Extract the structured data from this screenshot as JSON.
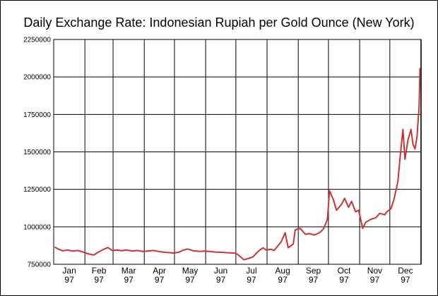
{
  "chart_data": {
    "type": "line",
    "title": "Daily Exchange Rate: Indonesian Rupiah per Gold Ounce (New York)",
    "xlabel": "",
    "ylabel": "",
    "ylim": [
      750000,
      2250000
    ],
    "y_ticks": [
      "750000",
      "1000000",
      "1250000",
      "1500000",
      "1750000",
      "2000000",
      "2250000"
    ],
    "x_ticks": [
      {
        "month": "Jan",
        "year": "97"
      },
      {
        "month": "Feb",
        "year": "97"
      },
      {
        "month": "Mar",
        "year": "97"
      },
      {
        "month": "Apr",
        "year": "97"
      },
      {
        "month": "May",
        "year": "97"
      },
      {
        "month": "Jun",
        "year": "97"
      },
      {
        "month": "Jul",
        "year": "97"
      },
      {
        "month": "Aug",
        "year": "97"
      },
      {
        "month": "Sep",
        "year": "97"
      },
      {
        "month": "Oct",
        "year": "97"
      },
      {
        "month": "Nov",
        "year": "97"
      },
      {
        "month": "Dec",
        "year": "97"
      }
    ],
    "grid": true,
    "line_color": "#cc3333",
    "series": [
      {
        "x": [
          "1997-01-02",
          "1997-01-06",
          "1997-01-10",
          "1997-01-15",
          "1997-01-20",
          "1997-01-25",
          "1997-01-31",
          "1997-02-05",
          "1997-02-10",
          "1997-02-14",
          "1997-02-19",
          "1997-02-24",
          "1997-02-28",
          "1997-03-05",
          "1997-03-10",
          "1997-03-14",
          "1997-03-20",
          "1997-03-25",
          "1997-03-31",
          "1997-04-04",
          "1997-04-10",
          "1997-04-15",
          "1997-04-21",
          "1997-04-25",
          "1997-04-30",
          "1997-05-05",
          "1997-05-09",
          "1997-05-14",
          "1997-05-20",
          "1997-05-26",
          "1997-05-30",
          "1997-06-05",
          "1997-06-10",
          "1997-06-16",
          "1997-06-20",
          "1997-06-25",
          "1997-06-30",
          "1997-07-03",
          "1997-07-09",
          "1997-07-14",
          "1997-07-18",
          "1997-07-23",
          "1997-07-28",
          "1997-07-31",
          "1997-08-05",
          "1997-08-08",
          "1997-08-12",
          "1997-08-15",
          "1997-08-19",
          "1997-08-22",
          "1997-08-27",
          "1997-08-29",
          "1997-09-03",
          "1997-09-08",
          "1997-09-12",
          "1997-09-17",
          "1997-09-22",
          "1997-09-26",
          "1997-09-30",
          "1997-10-02",
          "1997-10-06",
          "1997-10-09",
          "1997-10-14",
          "1997-10-17",
          "1997-10-21",
          "1997-10-24",
          "1997-10-28",
          "1997-10-31",
          "1997-11-04",
          "1997-11-07",
          "1997-11-12",
          "1997-11-17",
          "1997-11-21",
          "1997-11-26",
          "1997-11-28",
          "1997-12-02",
          "1997-12-05",
          "1997-12-09",
          "1997-12-11",
          "1997-12-14",
          "1997-12-16",
          "1997-12-19",
          "1997-12-22",
          "1997-12-24",
          "1997-12-26",
          "1997-12-28",
          "1997-12-30",
          "1997-12-31"
        ],
        "values": [
          865000,
          850000,
          840000,
          845000,
          838000,
          842000,
          830000,
          818000,
          812000,
          830000,
          848000,
          862000,
          842000,
          845000,
          840000,
          846000,
          838000,
          842000,
          835000,
          838000,
          842000,
          836000,
          830000,
          828000,
          825000,
          830000,
          842000,
          852000,
          840000,
          836000,
          838000,
          836000,
          832000,
          830000,
          828000,
          826000,
          825000,
          815000,
          780000,
          790000,
          800000,
          835000,
          860000,
          845000,
          850000,
          842000,
          875000,
          900000,
          960000,
          860000,
          885000,
          980000,
          990000,
          950000,
          955000,
          945000,
          960000,
          985000,
          1050000,
          1240000,
          1180000,
          1110000,
          1150000,
          1190000,
          1130000,
          1170000,
          1100000,
          1110000,
          990000,
          1030000,
          1050000,
          1060000,
          1090000,
          1080000,
          1100000,
          1120000,
          1180000,
          1300000,
          1450000,
          1650000,
          1450000,
          1580000,
          1650000,
          1550000,
          1520000,
          1600000,
          1800000,
          2060000
        ]
      }
    ]
  }
}
